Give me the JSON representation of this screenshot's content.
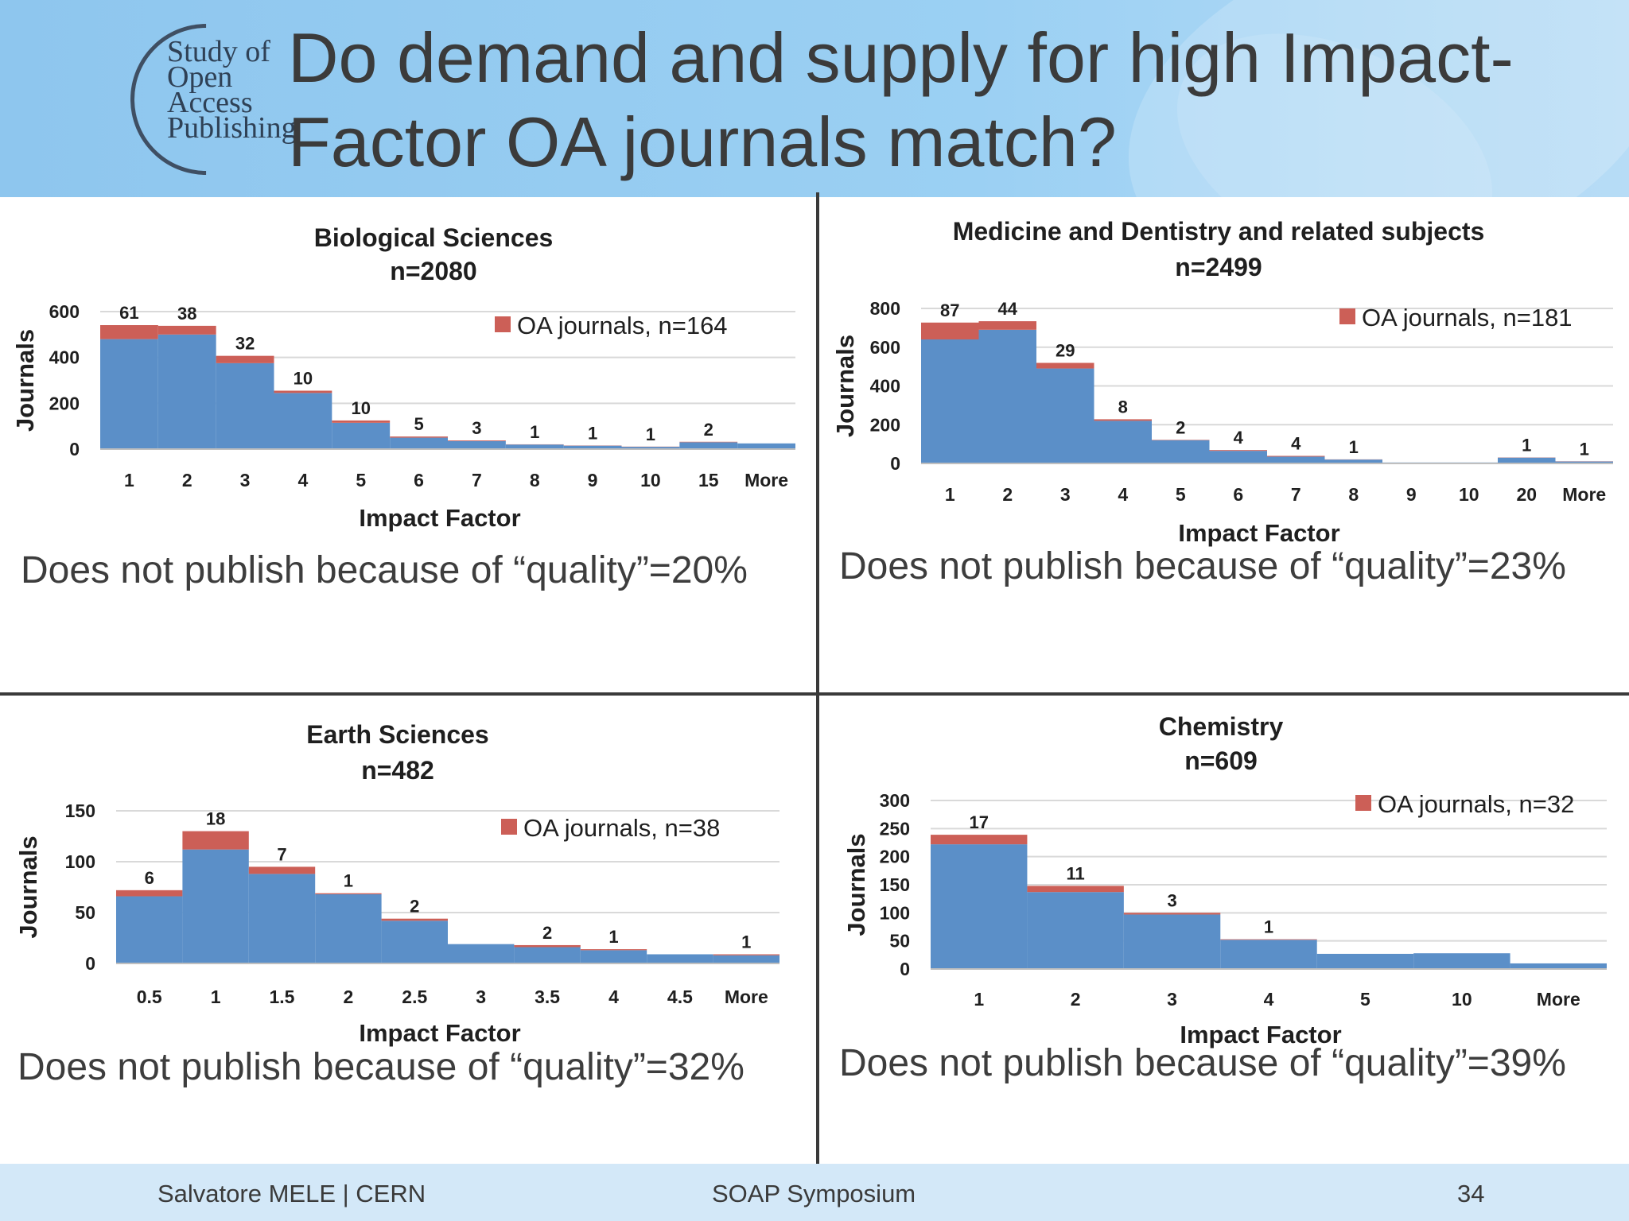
{
  "logo": {
    "line1": "Study of",
    "line2": "Open",
    "line3": "Access",
    "line4": "Publishing"
  },
  "title": "Do demand and supply for high Impact-Factor OA journals match?",
  "colors": {
    "all_journals": "#5b8fc8",
    "oa_journals": "#cc5f57",
    "grid": "#d9d9d9"
  },
  "panels": [
    {
      "quality": "Does not publish because of “quality”=20%"
    },
    {
      "quality": "Does not publish because of “quality”=23%"
    },
    {
      "quality": "Does not publish because of “quality”=32%"
    },
    {
      "quality": "Does not publish because of “quality”=39%"
    }
  ],
  "chart_data": [
    {
      "type": "bar",
      "title": "Biological Sciences",
      "subtitle": "n=2080",
      "xlabel": "Impact Factor",
      "ylabel": "Journals",
      "legend": "OA journals, n=164",
      "legend_position": "top-right",
      "ylim": [
        0,
        600
      ],
      "yticks": [
        0,
        200,
        400,
        600
      ],
      "grid": true,
      "categories": [
        "1",
        "2",
        "3",
        "4",
        "5",
        "6",
        "7",
        "8",
        "9",
        "10",
        "15",
        "More"
      ],
      "series": [
        {
          "name": "",
          "values": [
            480,
            500,
            375,
            245,
            115,
            50,
            35,
            20,
            15,
            10,
            30,
            25
          ]
        },
        {
          "name": "OA journals, n=164",
          "values": [
            61,
            38,
            32,
            10,
            10,
            5,
            3,
            1,
            1,
            1,
            2,
            0
          ]
        }
      ],
      "data_labels": [
        "61",
        "38",
        "32",
        "10",
        "10",
        "5",
        "3",
        "1",
        "1",
        "1",
        "2",
        ""
      ]
    },
    {
      "type": "bar",
      "title": "Medicine and Dentistry and related subjects",
      "subtitle": "n=2499",
      "xlabel": "Impact Factor",
      "ylabel": "Journals",
      "legend": "OA journals, n=181",
      "legend_position": "top-right",
      "ylim": [
        0,
        800
      ],
      "yticks": [
        0,
        200,
        400,
        600,
        800
      ],
      "grid": true,
      "categories": [
        "1",
        "2",
        "3",
        "4",
        "5",
        "6",
        "7",
        "8",
        "9",
        "10",
        "20",
        "More"
      ],
      "series": [
        {
          "name": "",
          "values": [
            640,
            690,
            490,
            220,
            120,
            65,
            35,
            20,
            5,
            5,
            30,
            10
          ]
        },
        {
          "name": "OA journals, n=181",
          "values": [
            87,
            44,
            29,
            8,
            2,
            4,
            4,
            1,
            0,
            0,
            1,
            1
          ]
        }
      ],
      "data_labels": [
        "87",
        "44",
        "29",
        "8",
        "2",
        "4",
        "4",
        "1",
        "",
        "",
        "1",
        "1"
      ]
    },
    {
      "type": "bar",
      "title": "Earth Sciences",
      "subtitle": "n=482",
      "xlabel": "Impact Factor",
      "ylabel": "Journals",
      "legend": "OA journals, n=38",
      "legend_position": "top-right",
      "ylim": [
        0,
        150
      ],
      "yticks": [
        0,
        50,
        100,
        150
      ],
      "grid": true,
      "categories": [
        "0.5",
        "1",
        "1.5",
        "2",
        "2.5",
        "3",
        "3.5",
        "4",
        "4.5",
        "More"
      ],
      "series": [
        {
          "name": "",
          "values": [
            66,
            112,
            88,
            68,
            42,
            19,
            16,
            13,
            9,
            8
          ]
        },
        {
          "name": "OA journals, n=38",
          "values": [
            6,
            18,
            7,
            1,
            2,
            0,
            2,
            1,
            0,
            1
          ]
        }
      ],
      "data_labels": [
        "6",
        "18",
        "7",
        "1",
        "2",
        "",
        "2",
        "1",
        "",
        "1"
      ]
    },
    {
      "type": "bar",
      "title": "Chemistry",
      "subtitle": "n=609",
      "xlabel": "Impact Factor",
      "ylabel": "Journals",
      "legend": "OA journals, n=32",
      "legend_position": "top-right",
      "ylim": [
        0,
        300
      ],
      "yticks": [
        0,
        50,
        100,
        150,
        200,
        250,
        300
      ],
      "grid": true,
      "categories": [
        "1",
        "2",
        "3",
        "4",
        "5",
        "10",
        "More"
      ],
      "series": [
        {
          "name": "",
          "values": [
            222,
            137,
            97,
            52,
            27,
            28,
            10
          ]
        },
        {
          "name": "OA journals, n=32",
          "values": [
            17,
            11,
            3,
            1,
            0,
            0,
            0
          ]
        }
      ],
      "data_labels": [
        "17",
        "11",
        "3",
        "1",
        "",
        "",
        ""
      ]
    }
  ],
  "footer": {
    "author": "Salvatore MELE | CERN",
    "event": "SOAP Symposium",
    "page": "34"
  }
}
